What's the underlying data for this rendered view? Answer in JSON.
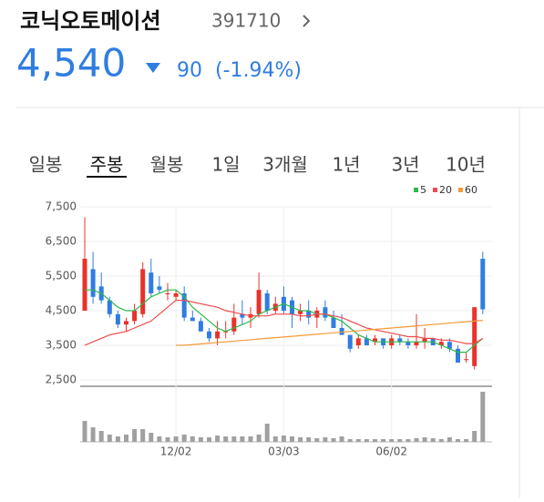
{
  "header": {
    "name": "코닉오토메이션",
    "code": "391710",
    "price": "4,540",
    "change": "90",
    "change_pct": "(-1.94%)"
  },
  "tabs": {
    "items": [
      "일봉",
      "주봉",
      "월봉",
      "1일",
      "3개월",
      "1년",
      "3년",
      "10년"
    ],
    "selected": 1
  },
  "chart_data": {
    "type": "candlestick",
    "categories": [
      null,
      null,
      null,
      null,
      null,
      null,
      null,
      null,
      null,
      null,
      null,
      "12/02",
      null,
      null,
      null,
      null,
      null,
      null,
      null,
      null,
      null,
      null,
      null,
      null,
      "03/03",
      null,
      null,
      null,
      null,
      null,
      null,
      null,
      null,
      null,
      null,
      null,
      null,
      "06/02",
      null,
      null,
      null,
      null,
      null,
      null,
      null,
      null,
      null,
      null,
      null
    ],
    "open": [
      4500,
      5700,
      5200,
      4800,
      4400,
      4100,
      4200,
      4400,
      5600,
      5200,
      5000,
      4900,
      5000,
      4300,
      4200,
      3900,
      3700,
      3900,
      3900,
      4400,
      4300,
      4400,
      5000,
      4500,
      4900,
      4800,
      4400,
      4500,
      4300,
      4600,
      4300,
      4000,
      3800,
      3500,
      3700,
      3600,
      3700,
      3500,
      3700,
      3600,
      3500,
      3600,
      3700,
      3500,
      3600,
      3400,
      3100,
      2900,
      6000
    ],
    "high": [
      7200,
      6200,
      5600,
      4900,
      4500,
      4300,
      4700,
      5900,
      6000,
      5500,
      5300,
      5100,
      5200,
      4500,
      4300,
      4000,
      4200,
      4200,
      4700,
      4800,
      4600,
      5600,
      5100,
      4900,
      5200,
      4900,
      4700,
      4800,
      4600,
      4800,
      4500,
      4400,
      3800,
      3800,
      3800,
      3800,
      3700,
      3800,
      3800,
      3700,
      4400,
      4000,
      3700,
      3700,
      3700,
      3500,
      3300,
      4600,
      6200
    ],
    "low": [
      4500,
      4700,
      4700,
      4300,
      4000,
      3900,
      4100,
      4300,
      4900,
      5000,
      4800,
      4800,
      4200,
      4200,
      3900,
      3600,
      3500,
      3700,
      3800,
      4100,
      4000,
      4300,
      4400,
      4400,
      4400,
      4000,
      4200,
      4100,
      4000,
      4200,
      4000,
      3800,
      3300,
      3400,
      3500,
      3500,
      3400,
      3400,
      3500,
      3400,
      3400,
      3400,
      3500,
      3400,
      3300,
      3000,
      3000,
      2800,
      4400
    ],
    "close": [
      6000,
      4900,
      4800,
      4400,
      4100,
      4200,
      4500,
      5700,
      5000,
      5100,
      5000,
      5000,
      4300,
      4200,
      3900,
      3700,
      3900,
      3900,
      4300,
      4300,
      4400,
      5100,
      4500,
      4700,
      4500,
      4400,
      4500,
      4300,
      4500,
      4300,
      4000,
      3800,
      3400,
      3700,
      3500,
      3700,
      3500,
      3700,
      3600,
      3500,
      3600,
      3700,
      3500,
      3600,
      3400,
      3000,
      3100,
      4600,
      4540
    ],
    "ma": [
      {
        "name": "5",
        "color": "#2db84a",
        "values": [
          5100,
          5100,
          5000,
          4800,
          4600,
          4500,
          4500,
          4700,
          4900,
          5000,
          5100,
          5100,
          4900,
          4600,
          4400,
          4200,
          4000,
          3900,
          4000,
          4100,
          4200,
          4400,
          4500,
          4600,
          4700,
          4600,
          4500,
          4500,
          4400,
          4400,
          4300,
          4200,
          4000,
          3800,
          3700,
          3600,
          3600,
          3600,
          3600,
          3600,
          3600,
          3600,
          3600,
          3500,
          3400,
          3300,
          3300,
          3500,
          3700
        ]
      },
      {
        "name": "20",
        "color": "#ee4b4b",
        "values": [
          3500,
          3600,
          3700,
          3800,
          3850,
          3900,
          4000,
          4100,
          4200,
          4400,
          4600,
          4800,
          4800,
          4750,
          4700,
          4650,
          4600,
          4500,
          4450,
          4400,
          4350,
          4350,
          4350,
          4400,
          4400,
          4400,
          4350,
          4350,
          4400,
          4400,
          4350,
          4300,
          4200,
          4100,
          4000,
          3950,
          3900,
          3850,
          3800,
          3750,
          3750,
          3700,
          3700,
          3650,
          3650,
          3600,
          3550,
          3550,
          3700
        ]
      },
      {
        "name": "60",
        "color": "#f39a3c",
        "values": [
          null,
          null,
          null,
          null,
          null,
          null,
          null,
          null,
          null,
          null,
          null,
          3500,
          3500,
          3520,
          3540,
          3560,
          3580,
          3600,
          3620,
          3640,
          3660,
          3680,
          3700,
          3720,
          3740,
          3760,
          3780,
          3800,
          3820,
          3840,
          3860,
          3880,
          3900,
          3920,
          3940,
          3960,
          3980,
          4000,
          4020,
          4040,
          4060,
          4080,
          4100,
          4120,
          4140,
          4160,
          4180,
          4200,
          4220
        ]
      }
    ],
    "volume": {
      "color": "#a0a0a0",
      "values": [
        23,
        16,
        12,
        8,
        6,
        8,
        14,
        14,
        10,
        6,
        5,
        6,
        8,
        6,
        5,
        5,
        7,
        6,
        6,
        6,
        6,
        8,
        20,
        6,
        7,
        6,
        5,
        5,
        4,
        5,
        4,
        6,
        3,
        3,
        3,
        3,
        3,
        3,
        3,
        3,
        4,
        5,
        4,
        3,
        5,
        3,
        3,
        12,
        55
      ]
    },
    "up_color": "#e8322b",
    "down_color": "#2f7de1",
    "ylim": [
      2500,
      7500
    ],
    "yticks": [
      {
        "value": 2500,
        "label": "2,500"
      },
      {
        "value": 3500,
        "label": "3,500"
      },
      {
        "value": 4500,
        "label": "4,500"
      },
      {
        "value": 5500,
        "label": "5,500"
      },
      {
        "value": 6500,
        "label": "6,500"
      },
      {
        "value": 7500,
        "label": "7,500"
      }
    ],
    "grid": true
  }
}
